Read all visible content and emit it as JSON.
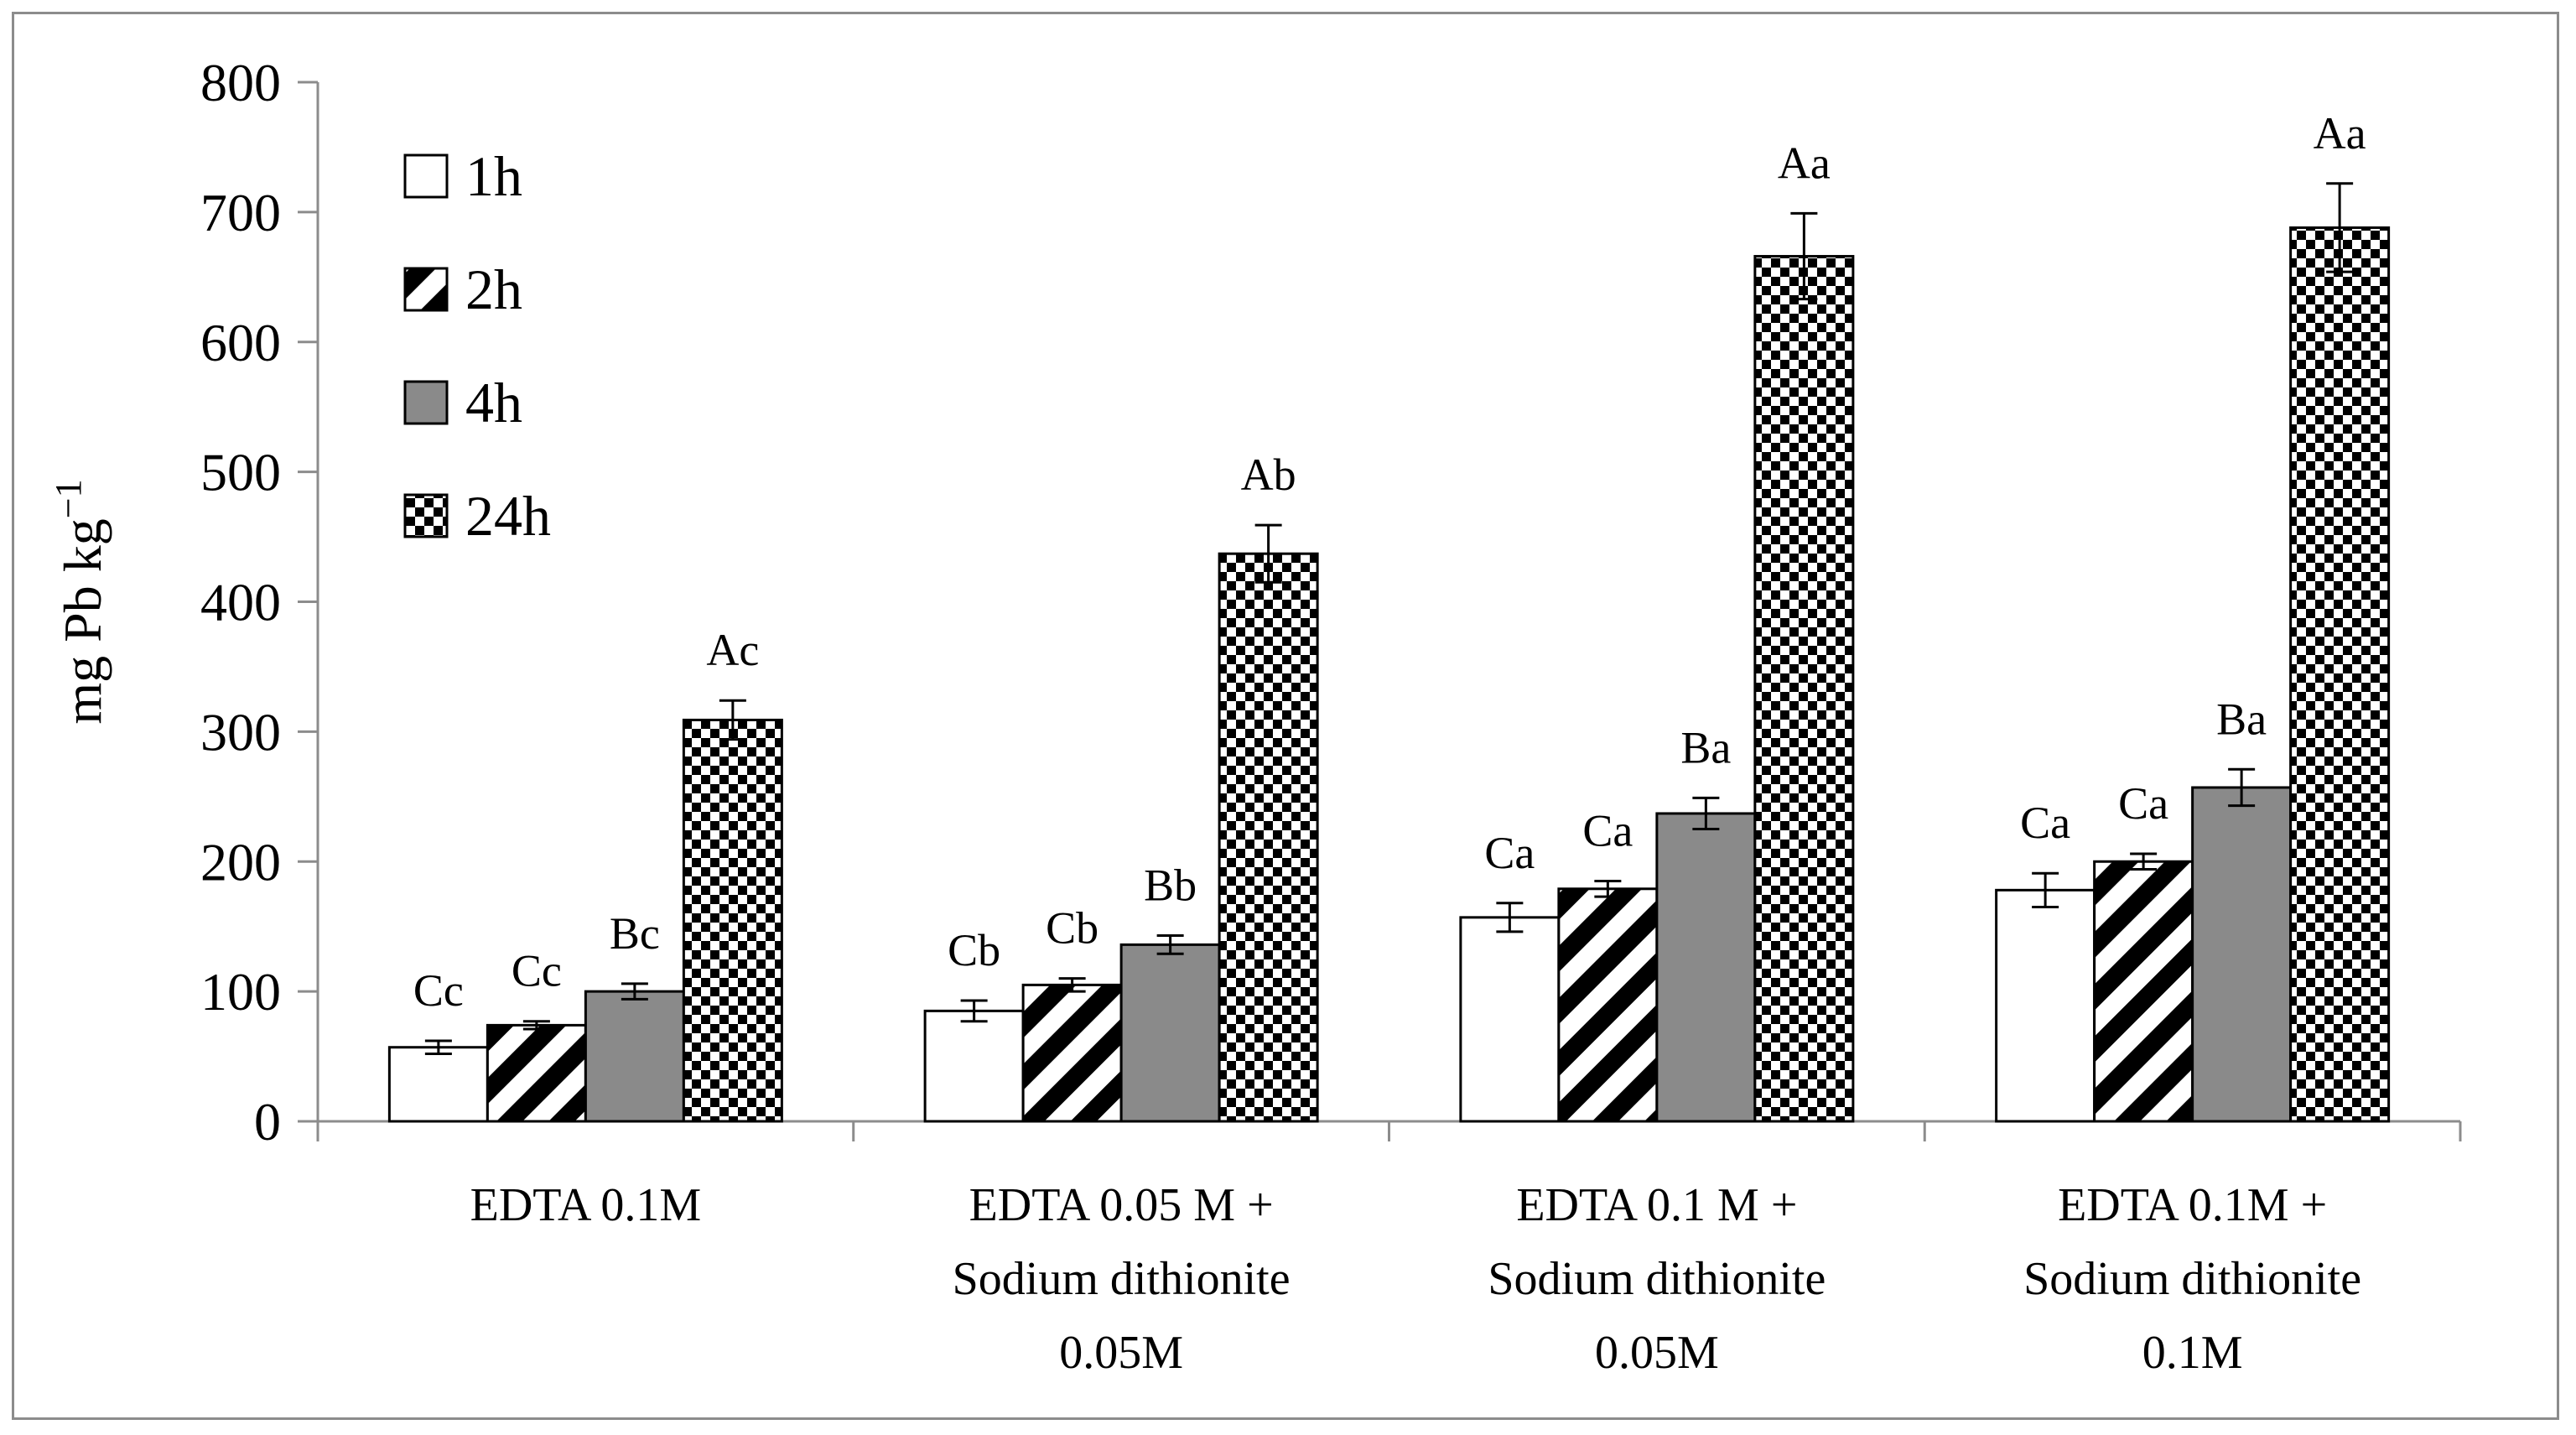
{
  "chart_data": {
    "type": "bar",
    "title": "",
    "xlabel": "",
    "ylabel": "mg Pb kg",
    "ylabel_superscript": "−1",
    "ylim": [
      0,
      800
    ],
    "yticks": [
      0,
      100,
      200,
      300,
      400,
      500,
      600,
      700,
      800
    ],
    "grid": false,
    "legend_position": "top-left",
    "categories": [
      [
        "EDTA 0.1M"
      ],
      [
        "EDTA 0.05 M +",
        "Sodium dithionite",
        "0.05M"
      ],
      [
        "EDTA 0.1 M +",
        "Sodium dithionite",
        "0.05M"
      ],
      [
        "EDTA 0.1M +",
        "Sodium dithionite",
        "0.1M"
      ]
    ],
    "series": [
      {
        "name": "1h",
        "pattern": "solid-white",
        "values": [
          57,
          85,
          157,
          178
        ],
        "errors": [
          5,
          8,
          11,
          13
        ],
        "labels": [
          "Cc",
          "Cb",
          "Ca",
          "Ca"
        ]
      },
      {
        "name": "2h",
        "pattern": "diagonal-stripes",
        "values": [
          74,
          105,
          179,
          200
        ],
        "errors": [
          3,
          5,
          6,
          6
        ],
        "labels": [
          "Cc",
          "Cb",
          "Ca",
          "Ca"
        ]
      },
      {
        "name": "4h",
        "pattern": "solid-gray",
        "values": [
          100,
          136,
          237,
          257
        ],
        "errors": [
          6,
          7,
          12,
          14
        ],
        "labels": [
          "Bc",
          "Bb",
          "Ba",
          "Ba"
        ]
      },
      {
        "name": "24h",
        "pattern": "checkerboard",
        "values": [
          309,
          437,
          666,
          688
        ],
        "errors": [
          15,
          22,
          33,
          34
        ],
        "labels": [
          "Ac",
          "Ab",
          "Aa",
          "Aa"
        ]
      }
    ],
    "colors": {
      "gray": "#8a8a8a",
      "outline": "#000000",
      "frame": "#8c8c8c",
      "axis": "#8c8c8c"
    }
  }
}
